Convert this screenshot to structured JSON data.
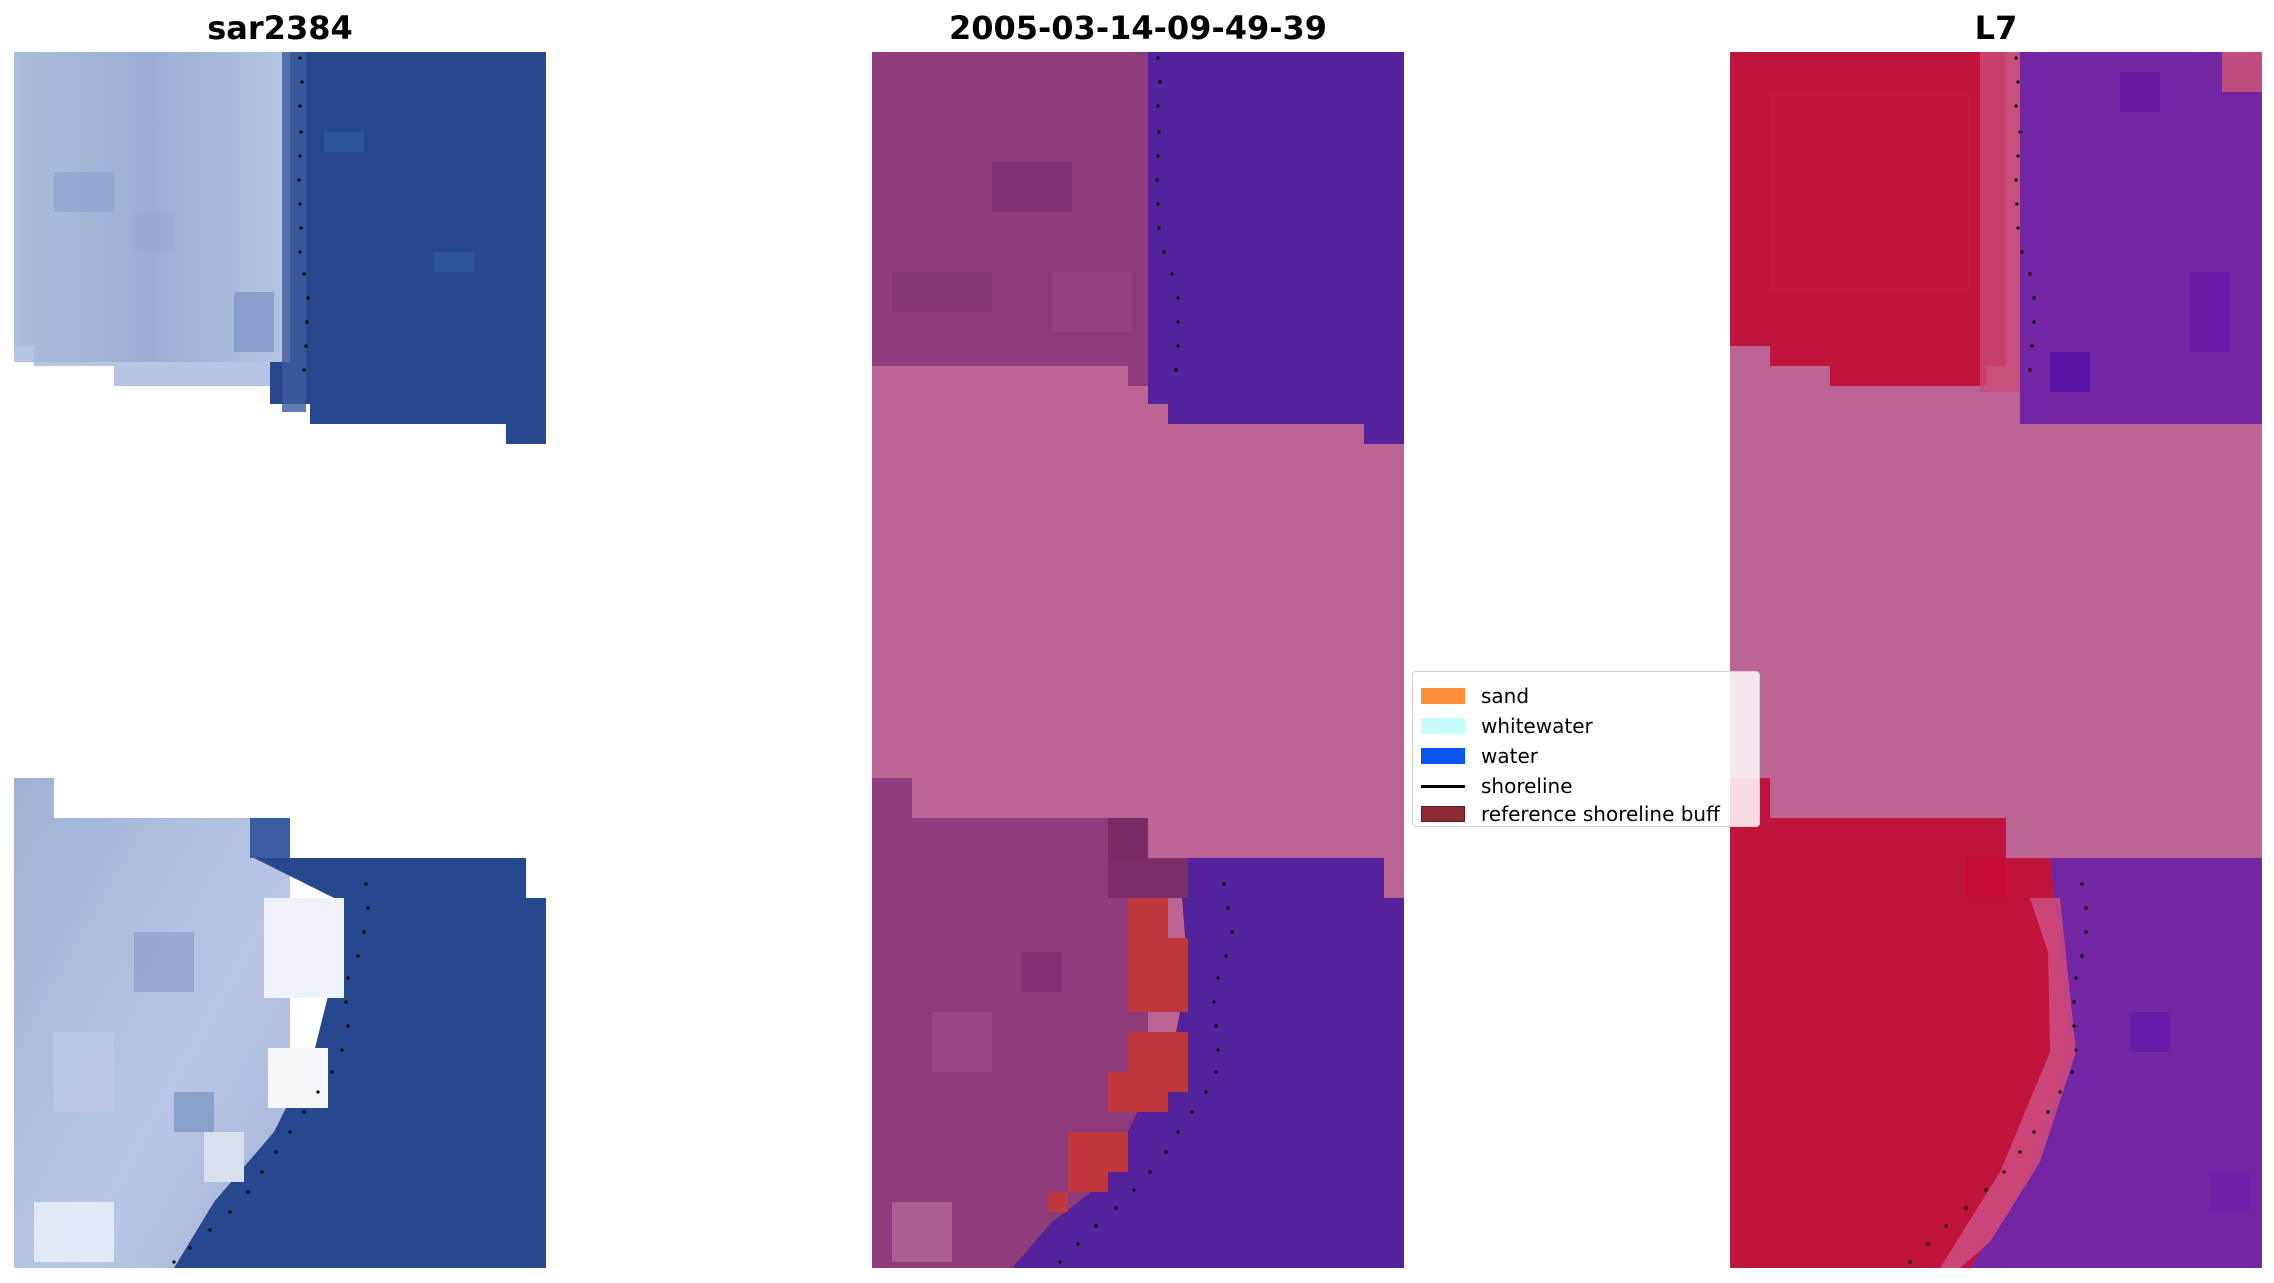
{
  "panels": [
    {
      "title": "sar2384"
    },
    {
      "title": "2005-03-14-09-49-39"
    },
    {
      "title": "L7"
    }
  ],
  "legend": {
    "items": [
      {
        "label": "sand",
        "color": "#ff8c3a",
        "kind": "patch"
      },
      {
        "label": "whitewater",
        "color": "#c8fdfd",
        "kind": "patch"
      },
      {
        "label": "water",
        "color": "#0a55f0",
        "kind": "patch"
      },
      {
        "label": "shoreline",
        "color": "#000000",
        "kind": "line"
      },
      {
        "label": "reference shoreline buff",
        "color": "#8b2a30",
        "kind": "patch"
      }
    ]
  },
  "colors": {
    "rgb_land": "#a8b8d8",
    "rgb_water": "#2a4f92",
    "classified_land": "#8e3c7c",
    "classified_water": "#54229a",
    "classified_gap": "#bc6494",
    "classified_buffer": "#c0383e",
    "index_land": "#c0143c",
    "index_water": "#7226a4",
    "index_gap": "#bc6494"
  }
}
